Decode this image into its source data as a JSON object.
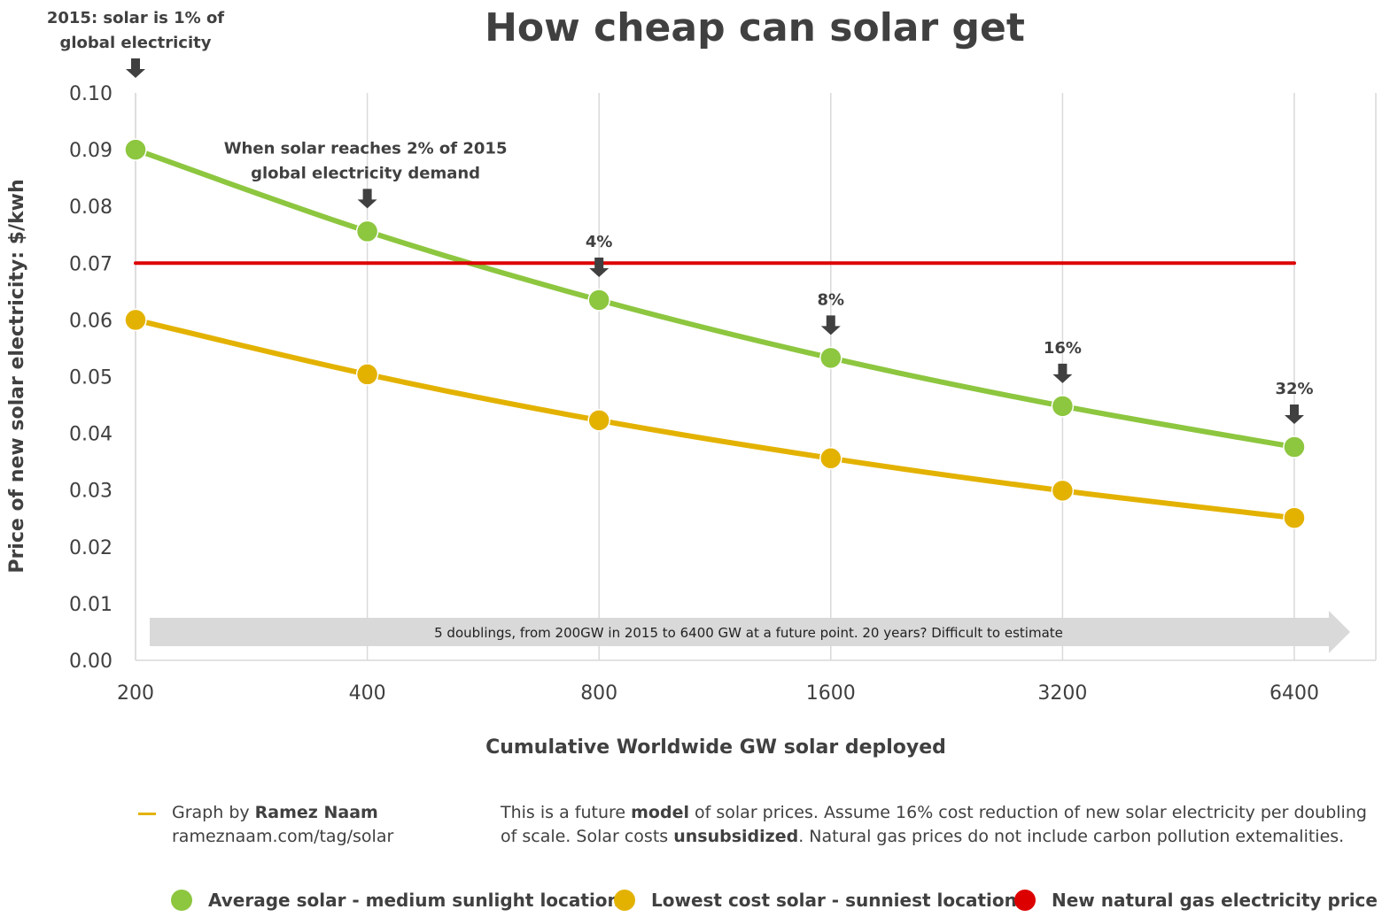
{
  "chart_data": {
    "type": "line",
    "title": "How cheap can solar get",
    "xlabel": "Cumulative Worldwide GW solar deployed",
    "ylabel": "Price of new solar electricity: $/kwh",
    "x": [
      200,
      400,
      800,
      1600,
      3200,
      6400
    ],
    "x_tick_labels": [
      "200",
      "400",
      "800",
      "1600",
      "3200",
      "6400"
    ],
    "x_scale": "log2",
    "ylim": [
      0,
      0.1
    ],
    "y_ticks": [
      0.0,
      0.01,
      0.02,
      0.03,
      0.04,
      0.05,
      0.06,
      0.07,
      0.08,
      0.09,
      0.1
    ],
    "y_tick_labels": [
      "0.00",
      "0.01",
      "0.02",
      "0.03",
      "0.04",
      "0.05",
      "0.06",
      "0.07",
      "0.08",
      "0.09",
      "0.10"
    ],
    "grid": "vertical",
    "series": [
      {
        "name": "Average solar - medium sunlight locations",
        "color": "#8dc63f",
        "values": [
          0.09,
          0.0756,
          0.0635,
          0.0533,
          0.0448,
          0.0376
        ]
      },
      {
        "name": "Lowest cost solar - sunniest locations",
        "color": "#e3b200",
        "values": [
          0.06,
          0.0504,
          0.0423,
          0.0356,
          0.0299,
          0.0251
        ]
      },
      {
        "name": "New natural gas electricity price",
        "color": "#dd0000",
        "values": [
          0.07,
          0.07,
          0.07,
          0.07,
          0.07,
          0.07
        ]
      }
    ],
    "annotations": [
      {
        "x": 200,
        "lines": [
          "2015: solar is 1% of",
          "global electricity"
        ]
      },
      {
        "x": 400,
        "lines": [
          "When solar reaches 2% of 2015",
          "global electricity demand"
        ]
      },
      {
        "x": 800,
        "lines": [
          "4%"
        ]
      },
      {
        "x": 1600,
        "lines": [
          "8%"
        ]
      },
      {
        "x": 3200,
        "lines": [
          "16%"
        ]
      },
      {
        "x": 6400,
        "lines": [
          "32%"
        ]
      }
    ],
    "band_text": "5 doublings, from 200GW in 2015 to 6400 GW at a future point.      20 years? Difficult to estimate",
    "legend_position": "bottom"
  },
  "credit": {
    "prefix": "Graph by ",
    "author": "Ramez Naam",
    "url": "rameznaam.com/tag/solar"
  },
  "note": {
    "p1": "This is a future ",
    "b1": "model",
    "p2": " of solar prices. Assume 16% cost reduction of new solar electricity per doubling of scale. Solar costs ",
    "b2": "unsubsidized",
    "p3": ". Natural gas prices do not include carbon pollution extemalities."
  }
}
